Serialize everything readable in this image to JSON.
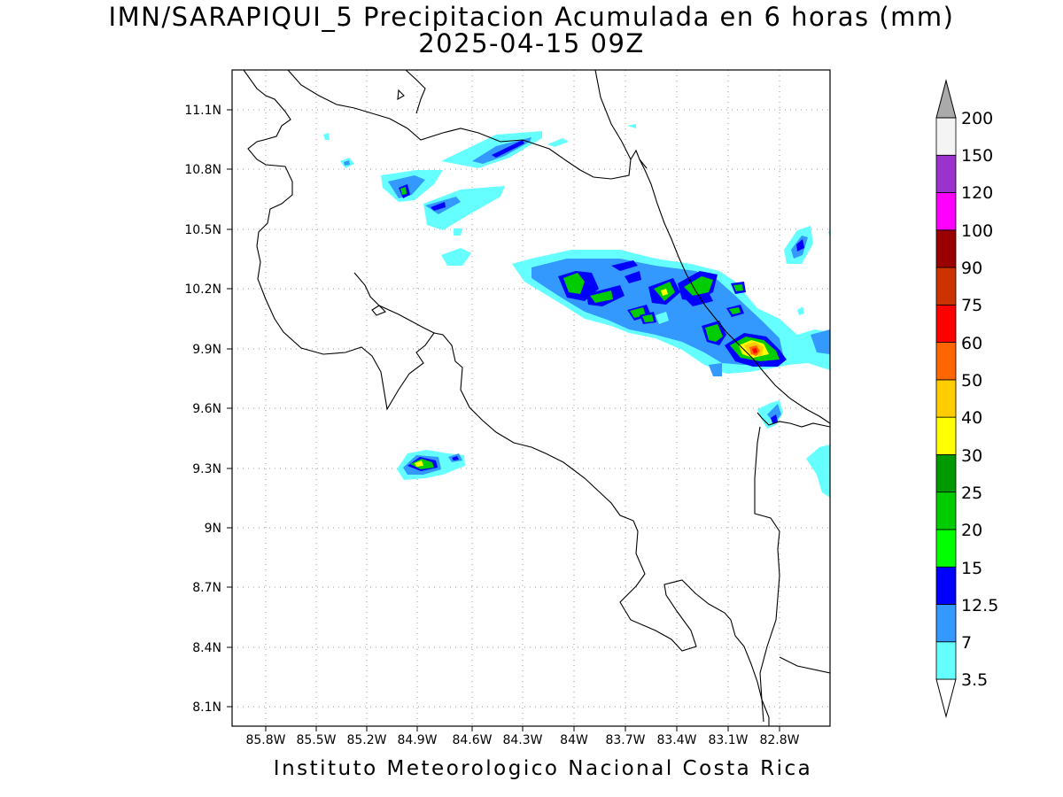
{
  "header": {
    "title": "IMN/SARAPIQUI_5 Precipitacion Acumulada en 6 horas (mm)",
    "valid_time": "2025-04-15 09Z"
  },
  "footer": {
    "credit": "Instituto Meteorologico Nacional Costa Rica"
  },
  "map": {
    "lon_ticks": [
      "85.8W",
      "85.5W",
      "85.2W",
      "84.9W",
      "84.6W",
      "84.3W",
      "84W",
      "83.7W",
      "83.4W",
      "83.1W",
      "82.8W"
    ],
    "lat_ticks": [
      "11.1N",
      "10.8N",
      "10.5N",
      "10.2N",
      "9.9N",
      "9.6N",
      "9.3N",
      "9N",
      "8.7N",
      "8.4N",
      "8.1N"
    ],
    "grid": "dotted"
  },
  "colorbar": {
    "labels": [
      "3.5",
      "7",
      "12.5",
      "15",
      "20",
      "25",
      "30",
      "40",
      "50",
      "60",
      "75",
      "90",
      "100",
      "120",
      "150",
      "200"
    ],
    "colors": [
      "#66ffff",
      "#3399ff",
      "#0000ff",
      "#00ff00",
      "#00cc00",
      "#009900",
      "#ffff00",
      "#ffcc00",
      "#ff6600",
      "#ff0000",
      "#cc3300",
      "#990000",
      "#ff00ff",
      "#9933cc",
      "#f4f4f4"
    ],
    "under_color": "#ffffff",
    "over_color": "#aaaaaa"
  }
}
